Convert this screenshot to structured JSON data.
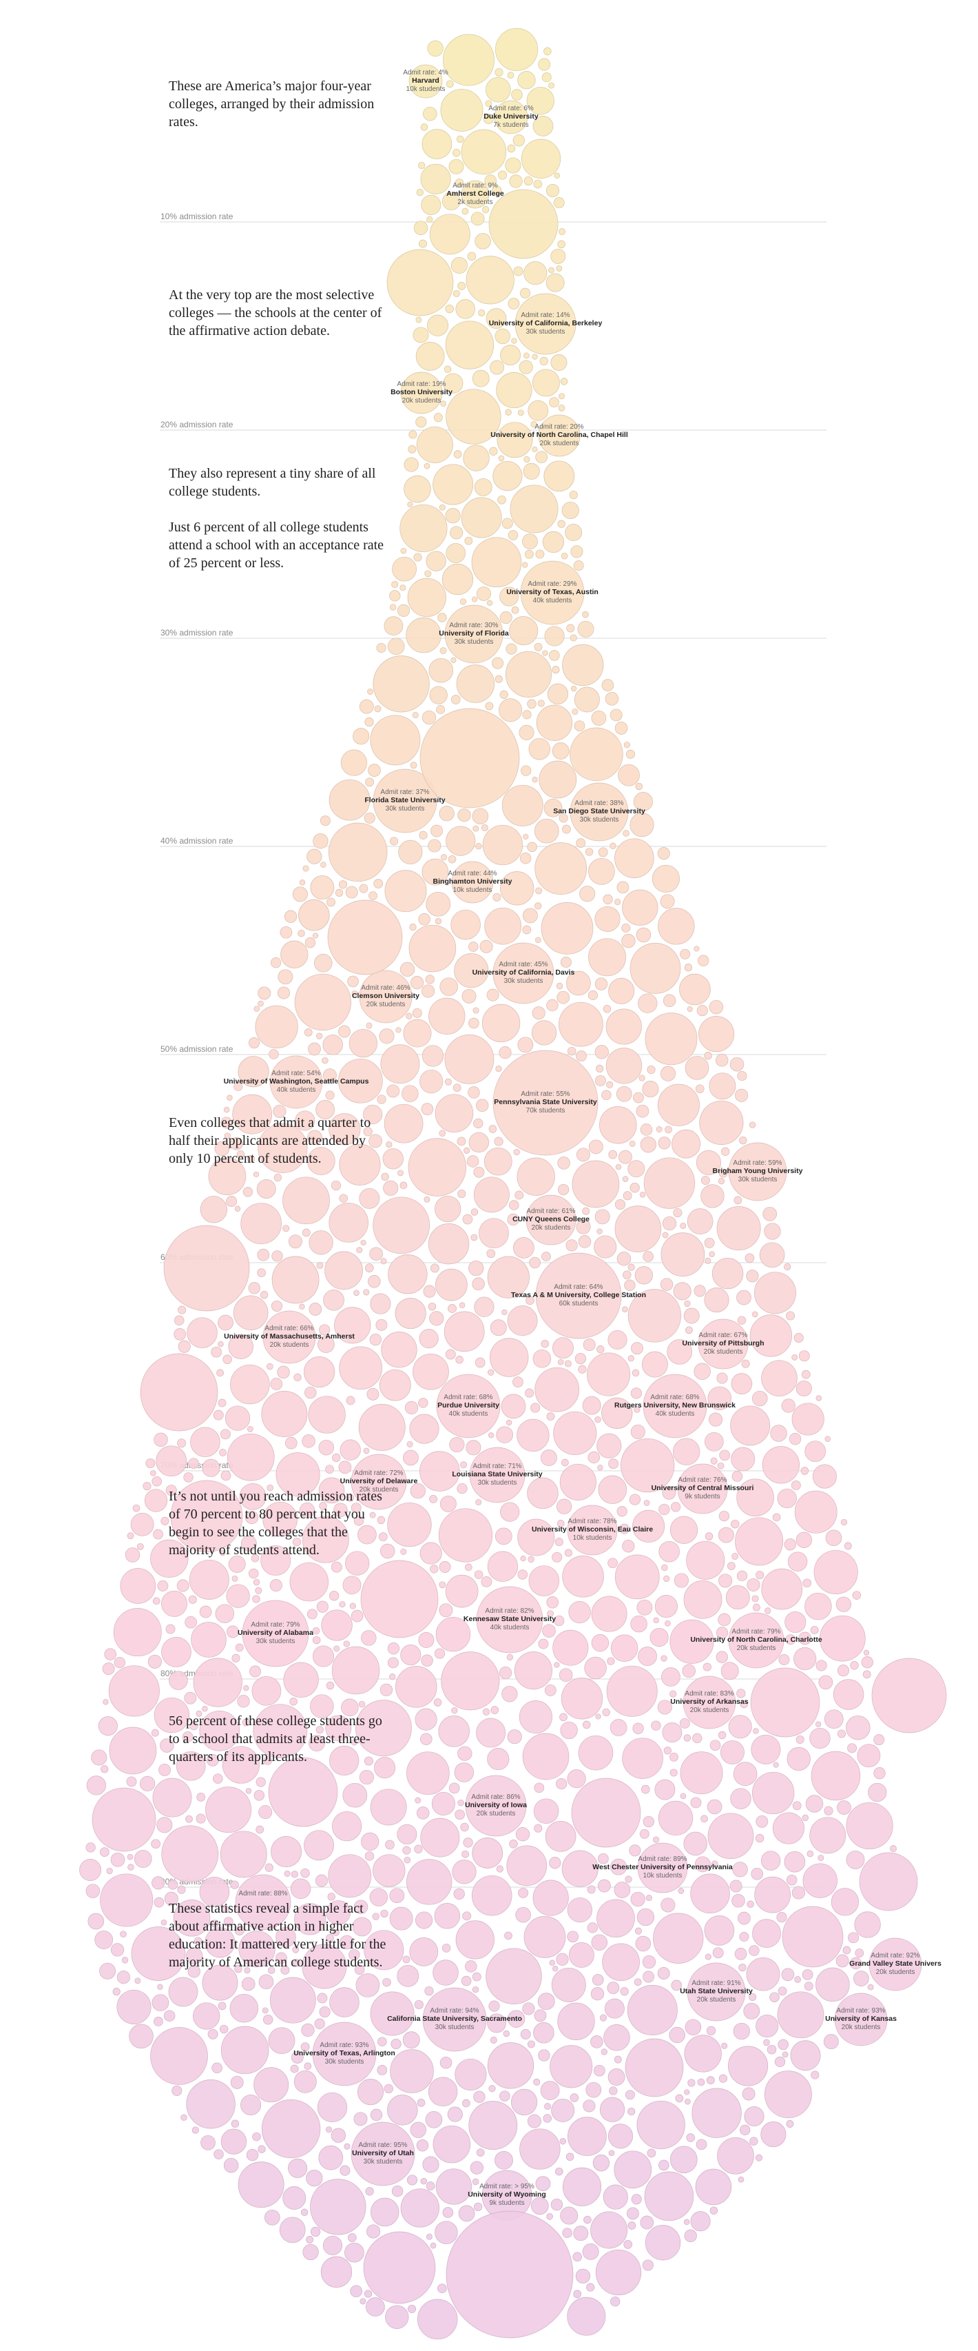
{
  "chart_data": {
    "type": "scatter",
    "title": "",
    "xlabel": "",
    "ylabel": "",
    "encoding": "packed bubbles; vertical position = admission rate, bubble area = enrollment, color shifts from yellow to pink to purple with admission rate",
    "ylim": [
      0,
      100
    ],
    "colors": [
      "#f7eab6",
      "#fbdcc8",
      "#fad1dd",
      "#eecbe6"
    ],
    "rules": [
      {
        "rate": 10,
        "label": "10% admission rate"
      },
      {
        "rate": 20,
        "label": "20% admission rate"
      },
      {
        "rate": 30,
        "label": "30% admission rate"
      },
      {
        "rate": 40,
        "label": "40% admission rate"
      },
      {
        "rate": 50,
        "label": "50% admission rate"
      },
      {
        "rate": 60,
        "label": "60% admission rate"
      },
      {
        "rate": 70,
        "label": "70% admission rate"
      },
      {
        "rate": 80,
        "label": "80% admission rate"
      },
      {
        "rate": 90,
        "label": "90% admission rate"
      }
    ],
    "labeled_points": [
      {
        "rate_text": "Admit rate: 4%",
        "name": "Harvard",
        "size_text": "10k students",
        "rate": 4,
        "students": 10000
      },
      {
        "rate_text": "Admit rate: 6%",
        "name": "Duke University",
        "size_text": "7k students",
        "rate": 6,
        "students": 7000
      },
      {
        "rate_text": "Admit rate: 9%",
        "name": "Amherst College",
        "size_text": "2k students",
        "rate": 9,
        "students": 2000
      },
      {
        "rate_text": "Admit rate: 14%",
        "name": "University of California, Berkeley",
        "size_text": "30k students",
        "rate": 14,
        "students": 30000
      },
      {
        "rate_text": "Admit rate: 19%",
        "name": "Boston University",
        "size_text": "20k students",
        "rate": 19,
        "students": 20000
      },
      {
        "rate_text": "Admit rate: 20%",
        "name": "University of North Carolina, Chapel Hill",
        "size_text": "20k students",
        "rate": 20,
        "students": 20000
      },
      {
        "rate_text": "Admit rate: 29%",
        "name": "University of Texas, Austin",
        "size_text": "40k students",
        "rate": 29,
        "students": 40000
      },
      {
        "rate_text": "Admit rate: 30%",
        "name": "University of Florida",
        "size_text": "30k students",
        "rate": 30,
        "students": 30000
      },
      {
        "rate_text": "Admit rate: 37%",
        "name": "Florida State University",
        "size_text": "30k students",
        "rate": 37,
        "students": 30000
      },
      {
        "rate_text": "Admit rate: 38%",
        "name": "San Diego State University",
        "size_text": "30k students",
        "rate": 38,
        "students": 30000
      },
      {
        "rate_text": "Admit rate: 44%",
        "name": "Binghamton University",
        "size_text": "10k students",
        "rate": 44,
        "students": 10000
      },
      {
        "rate_text": "Admit rate: 45%",
        "name": "University of California, Davis",
        "size_text": "30k students",
        "rate": 45,
        "students": 30000
      },
      {
        "rate_text": "Admit rate: 46%",
        "name": "Clemson University",
        "size_text": "20k students",
        "rate": 46,
        "students": 20000
      },
      {
        "rate_text": "Admit rate: 54%",
        "name": "University of Washington, Seattle Campus",
        "size_text": "40k students",
        "rate": 54,
        "students": 40000
      },
      {
        "rate_text": "Admit rate: 55%",
        "name": "Pennsylvania State University",
        "size_text": "70k students",
        "rate": 55,
        "students": 70000
      },
      {
        "rate_text": "Admit rate: 59%",
        "name": "Brigham Young University",
        "size_text": "30k students",
        "rate": 59,
        "students": 30000
      },
      {
        "rate_text": "Admit rate: 61%",
        "name": "CUNY Queens College",
        "size_text": "20k students",
        "rate": 61,
        "students": 20000
      },
      {
        "rate_text": "Admit rate: 64%",
        "name": "Texas A & M University, College Station",
        "size_text": "60k students",
        "rate": 64,
        "students": 60000
      },
      {
        "rate_text": "Admit rate: 66%",
        "name": "University of Massachusetts, Amherst",
        "size_text": "20k students",
        "rate": 66,
        "students": 20000
      },
      {
        "rate_text": "Admit rate: 67%",
        "name": "University of Pittsburgh",
        "size_text": "20k students",
        "rate": 67,
        "students": 20000
      },
      {
        "rate_text": "Admit rate: 68%",
        "name": "Purdue University",
        "size_text": "40k students",
        "rate": 68,
        "students": 40000
      },
      {
        "rate_text": "Admit rate: 68%",
        "name": "Rutgers University, New Brunswick",
        "size_text": "40k students",
        "rate": 68,
        "students": 40000
      },
      {
        "rate_text": "Admit rate: 71%",
        "name": "Louisiana State University",
        "size_text": "30k students",
        "rate": 71,
        "students": 30000
      },
      {
        "rate_text": "Admit rate: 72%",
        "name": "University of Delaware",
        "size_text": "20k students",
        "rate": 72,
        "students": 20000
      },
      {
        "rate_text": "Admit rate: 76%",
        "name": "University of Central Missouri",
        "size_text": "9k students",
        "rate": 76,
        "students": 9000
      },
      {
        "rate_text": "Admit rate: 78%",
        "name": "University of Wisconsin, Eau Claire",
        "size_text": "10k students",
        "rate": 78,
        "students": 10000
      },
      {
        "rate_text": "Admit rate: 82%",
        "name": "Kennesaw State University",
        "size_text": "40k students",
        "rate": 82,
        "students": 40000
      },
      {
        "rate_text": "Admit rate: 79%",
        "name": "University of Alabama",
        "size_text": "30k students",
        "rate": 79,
        "students": 30000
      },
      {
        "rate_text": "Admit rate: 79%",
        "name": "University of North Carolina, Charlotte",
        "size_text": "20k students",
        "rate": 79,
        "students": 20000
      },
      {
        "rate_text": "Admit rate: 83%",
        "name": "University of Arkansas",
        "size_text": "20k students",
        "rate": 83,
        "students": 20000
      },
      {
        "rate_text": "Admit rate: 86%",
        "name": "University of Iowa",
        "size_text": "20k students",
        "rate": 86,
        "students": 20000
      },
      {
        "rate_text": "Admit rate: 89%",
        "name": "West Chester University of Pennsylvania",
        "size_text": "10k students",
        "rate": 89,
        "students": 10000
      },
      {
        "rate_text": "Admit rate: 88%",
        "name": "",
        "size_text": "",
        "rate": 88,
        "students": null
      },
      {
        "rate_text": "Admit rate: 91%",
        "name": "Utah State University",
        "size_text": "20k students",
        "rate": 91,
        "students": 20000
      },
      {
        "rate_text": "Admit rate: 92%",
        "name": "Grand Valley State Univers",
        "size_text": "20k students",
        "rate": 92,
        "students": 20000
      },
      {
        "rate_text": "Admit rate: 93%",
        "name": "University of Kansas",
        "size_text": "20k students",
        "rate": 93,
        "students": 20000
      },
      {
        "rate_text": "Admit rate: 94%",
        "name": "California State University, Sacramento",
        "size_text": "30k students",
        "rate": 94,
        "students": 30000
      },
      {
        "rate_text": "Admit rate: 93%",
        "name": "University of Texas, Arlington",
        "size_text": "30k students",
        "rate": 93,
        "students": 30000
      },
      {
        "rate_text": "Admit rate: 95%",
        "name": "University of Utah",
        "size_text": "30k students",
        "rate": 95,
        "students": 30000
      },
      {
        "rate_text": "Admit rate: > 95%",
        "name": "University of Wyoming",
        "size_text": "9k students",
        "rate": 96,
        "students": 9000
      }
    ]
  },
  "story": [
    "These are America’s major four-year colleges, arranged by their admission rates.",
    "At the very top are the most selective colleges — the schools at the center of the affirmative action debate.",
    "They also represent a tiny share of all college students.",
    "Just 6 percent of all college students attend a school with an acceptance rate of 25 percent or less.",
    "Even colleges that admit a quarter to half their applicants are attended by only 10 percent of students.",
    "It’s not until you reach admission rates of 70 percent to 80 percent that you begin to see the colleges that the majority of students attend.",
    "56 percent of these college students go to a school that admits at least three-quarters of its applicants.",
    "These statistics reveal a simple fact about affirmative action in higher education: It mattered very little for the majority of American college students."
  ]
}
